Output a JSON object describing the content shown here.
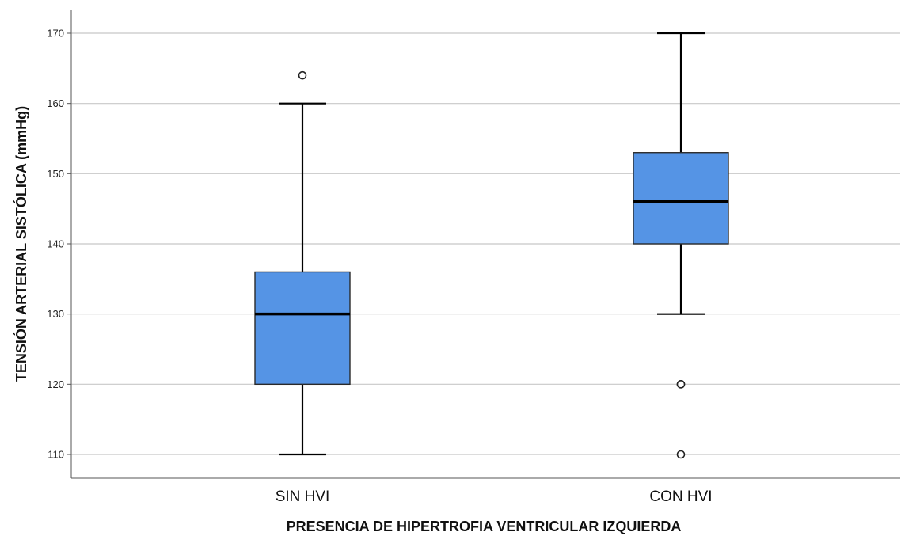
{
  "chart_data": {
    "type": "box",
    "title": "",
    "xlabel": "PRESENCIA DE HIPERTROFIA VENTRICULAR IZQUIERDA",
    "ylabel": "TENSIÓN ARTERIAL SISTÓLICA (mmHg)",
    "ylim": [
      106.5,
      173.5
    ],
    "yticks": [
      110,
      120,
      130,
      140,
      150,
      160,
      170
    ],
    "grid": true,
    "box_color": "#5594e5",
    "categories": [
      "SIN HVI",
      "CON HVI"
    ],
    "boxes": [
      {
        "category": "SIN HVI",
        "whisker_low": 110,
        "q1": 120,
        "median": 130,
        "q3": 136,
        "whisker_high": 160,
        "outliers": [
          164
        ]
      },
      {
        "category": "CON HVI",
        "whisker_low": 130,
        "q1": 140,
        "median": 146,
        "q3": 153,
        "whisker_high": 170,
        "outliers": [
          120,
          120,
          110
        ]
      }
    ]
  }
}
